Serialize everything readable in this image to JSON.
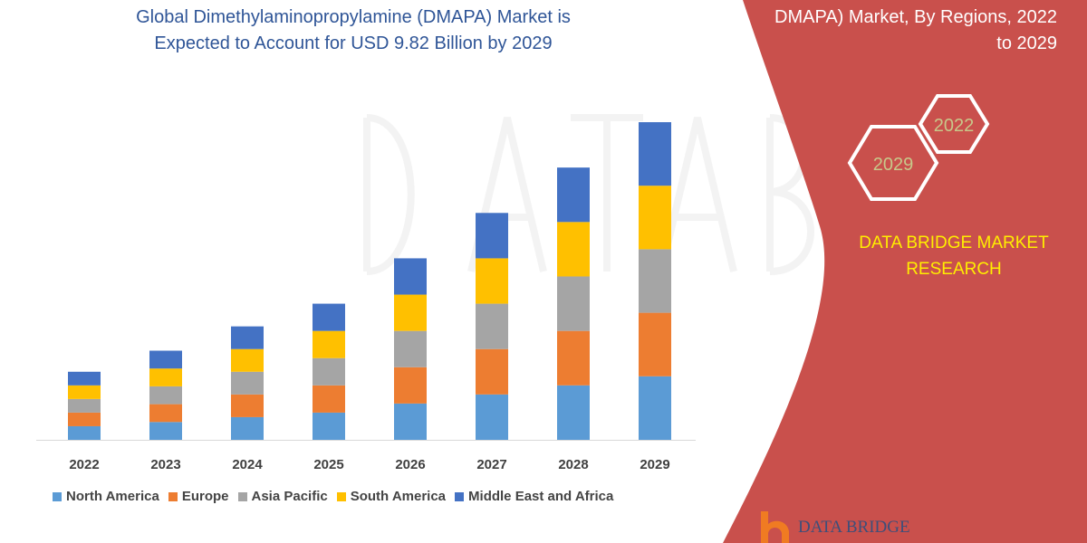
{
  "title_lines": [
    "Global Dimethylaminopropylamine (DMAPA) Market is",
    "Expected to Account for USD 9.82 Billion by 2029"
  ],
  "right_title_lines": [
    "DMAPA) Market, By Regions, 2022",
    "to 2029"
  ],
  "hexagons": {
    "back": "2022",
    "front": "2029"
  },
  "brand_lines": [
    "DATA BRIDGE MARKET",
    "RESEARCH"
  ],
  "logo_text": "DATA BRIDGE",
  "colors": {
    "panel": "#c9504c",
    "brand_text": "#ffee00",
    "hex_text": "#c8c88a",
    "title": "#2f5597"
  },
  "chart_data": {
    "type": "bar",
    "stacked": true,
    "categories": [
      "2022",
      "2023",
      "2024",
      "2025",
      "2026",
      "2027",
      "2028",
      "2029"
    ],
    "series": [
      {
        "name": "North America",
        "color": "#5b9bd5",
        "values": [
          0.42,
          0.55,
          0.7,
          0.84,
          1.12,
          1.4,
          1.68,
          1.96
        ]
      },
      {
        "name": "Europe",
        "color": "#ed7d31",
        "values": [
          0.42,
          0.55,
          0.7,
          0.84,
          1.12,
          1.4,
          1.68,
          1.96
        ]
      },
      {
        "name": "Asia Pacific",
        "color": "#a5a5a5",
        "values": [
          0.42,
          0.55,
          0.7,
          0.84,
          1.12,
          1.4,
          1.68,
          1.96
        ]
      },
      {
        "name": "South America",
        "color": "#ffc000",
        "values": [
          0.42,
          0.55,
          0.7,
          0.84,
          1.12,
          1.4,
          1.68,
          1.96
        ]
      },
      {
        "name": "Middle East and Africa",
        "color": "#4472c4",
        "values": [
          0.42,
          0.55,
          0.7,
          0.84,
          1.12,
          1.4,
          1.68,
          1.96
        ]
      }
    ],
    "ylim": [
      0,
      10
    ],
    "grid": false,
    "legend_position": "bottom"
  }
}
